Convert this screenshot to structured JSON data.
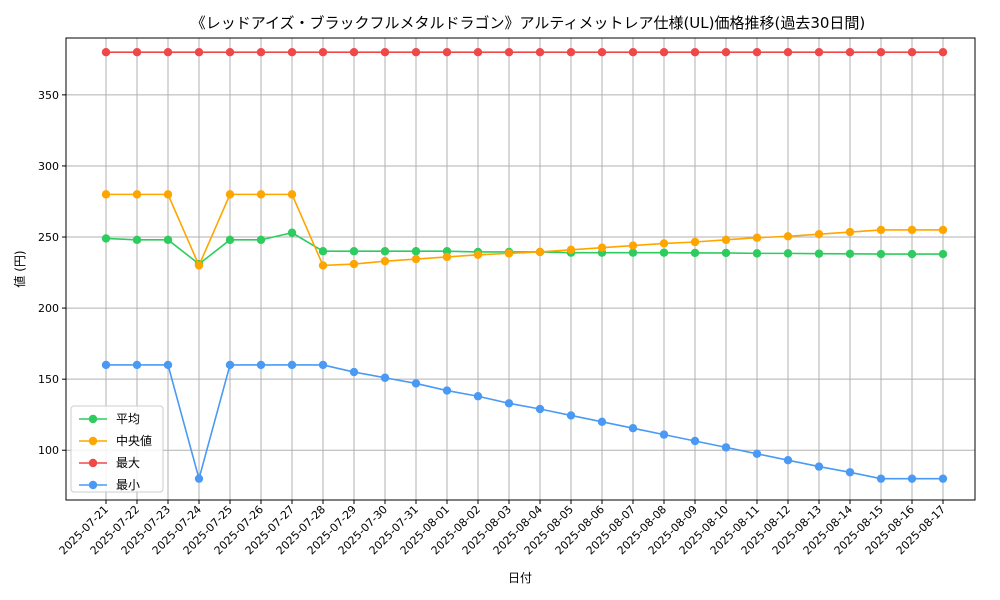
{
  "chart_data": {
    "type": "line",
    "title": "《レッドアイズ・ブラックフルメタルドラゴン》アルティメットレア仕様(UL)価格推移(過去30日間)",
    "xlabel": "日付",
    "ylabel": "値 (円)",
    "ylim": [
      65,
      390
    ],
    "yticks": [
      100,
      150,
      200,
      250,
      300,
      350
    ],
    "grid": true,
    "legend_position": "lower-left",
    "categories": [
      "2025-07-21",
      "2025-07-22",
      "2025-07-23",
      "2025-07-24",
      "2025-07-25",
      "2025-07-26",
      "2025-07-27",
      "2025-07-28",
      "2025-07-29",
      "2025-07-30",
      "2025-07-31",
      "2025-08-01",
      "2025-08-02",
      "2025-08-03",
      "2025-08-04",
      "2025-08-05",
      "2025-08-06",
      "2025-08-07",
      "2025-08-08",
      "2025-08-09",
      "2025-08-10",
      "2025-08-11",
      "2025-08-12",
      "2025-08-13",
      "2025-08-14",
      "2025-08-15",
      "2025-08-16",
      "2025-08-17"
    ],
    "series": [
      {
        "name": "平均",
        "color": "#2ecc5f",
        "values": [
          249,
          248,
          248,
          231,
          248,
          248,
          253,
          240,
          240,
          240,
          240,
          240,
          239.5,
          239.5,
          239.5,
          239,
          239,
          239,
          239,
          238.8,
          238.8,
          238.5,
          238.5,
          238.3,
          238.2,
          238,
          238,
          238
        ]
      },
      {
        "name": "中央値",
        "color": "#ffa500",
        "values": [
          280,
          280,
          280,
          230,
          280,
          280,
          280,
          230,
          231,
          233,
          234.5,
          236,
          237.5,
          238.5,
          239.5,
          241,
          242.5,
          244,
          245.5,
          246.5,
          248,
          249.5,
          250.5,
          252,
          253.5,
          255,
          255,
          255
        ]
      },
      {
        "name": "最大",
        "color": "#f04848",
        "values": [
          380,
          380,
          380,
          380,
          380,
          380,
          380,
          380,
          380,
          380,
          380,
          380,
          380,
          380,
          380,
          380,
          380,
          380,
          380,
          380,
          380,
          380,
          380,
          380,
          380,
          380,
          380,
          380
        ]
      },
      {
        "name": "最小",
        "color": "#4a9af5",
        "values": [
          160,
          160,
          160,
          80,
          160,
          160,
          160,
          160,
          155,
          151,
          147,
          142,
          138,
          133,
          129,
          124.5,
          120,
          115.5,
          111,
          106.5,
          102,
          97.5,
          93,
          88.5,
          84.5,
          80,
          80,
          80
        ]
      }
    ]
  }
}
